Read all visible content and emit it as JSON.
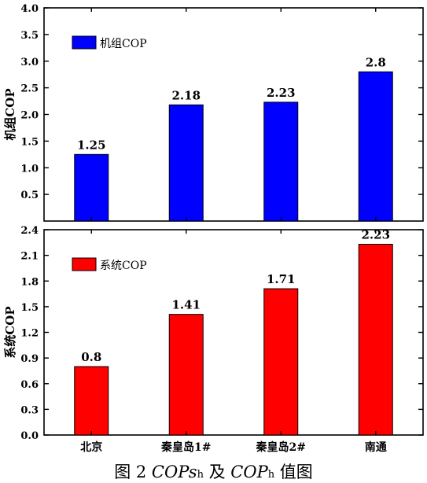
{
  "chart_data": [
    {
      "type": "bar",
      "categories": [
        "北京",
        "秦皇岛1#",
        "秦皇岛2#",
        "南通"
      ],
      "values": [
        1.25,
        2.18,
        2.23,
        2.8
      ],
      "value_labels": [
        "1.25",
        "2.18",
        "2.23",
        "2.8"
      ],
      "series": [
        {
          "name": "机组COP",
          "values": [
            1.25,
            2.18,
            2.23,
            2.8
          ]
        }
      ],
      "ylabel": "机组COP",
      "ylim": [
        0,
        4.0
      ],
      "yticks": [
        "0.5",
        "1.0",
        "1.5",
        "2.0",
        "2.5",
        "3.0",
        "3.5",
        "4.0"
      ],
      "color": "#0000ff",
      "legend": "top-left",
      "grid": false
    },
    {
      "type": "bar",
      "categories": [
        "北京",
        "秦皇岛1#",
        "秦皇岛2#",
        "南通"
      ],
      "values": [
        0.8,
        1.41,
        1.71,
        2.23
      ],
      "value_labels": [
        "0.8",
        "1.41",
        "1.71",
        "2.23"
      ],
      "series": [
        {
          "name": "系统COP",
          "values": [
            0.8,
            1.41,
            1.71,
            2.23
          ]
        }
      ],
      "ylabel": "系统COP",
      "ylim": [
        0,
        2.4
      ],
      "yticks": [
        "0.0",
        "0.3",
        "0.6",
        "0.9",
        "1.2",
        "1.5",
        "1.8",
        "2.1",
        "2.4"
      ],
      "color": "#ff0000",
      "legend": "top-left",
      "grid": false
    }
  ],
  "caption": {
    "prefix": "图 2 ",
    "part1": "COPs",
    "part1_sub": "h",
    "connector": " 及 ",
    "part2": "COP",
    "part2_sub": "h",
    "suffix": " 值图"
  }
}
